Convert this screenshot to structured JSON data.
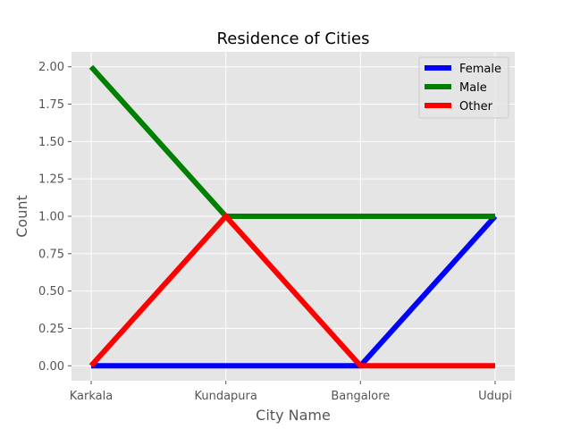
{
  "chart_data": {
    "type": "line",
    "title": "Residence of Cities",
    "xlabel": "City Name",
    "ylabel": "Count",
    "categories": [
      "Karkala",
      "Kundapura",
      "Bangalore",
      "Udupi"
    ],
    "ylim": [
      -0.1,
      2.1
    ],
    "yticks": [
      0.0,
      0.25,
      0.5,
      0.75,
      1.0,
      1.25,
      1.5,
      1.75,
      2.0
    ],
    "ytick_labels": [
      "0.00",
      "0.25",
      "0.50",
      "0.75",
      "1.00",
      "1.25",
      "1.50",
      "1.75",
      "2.00"
    ],
    "grid": true,
    "legend_position": "top-right",
    "series": [
      {
        "name": "Female",
        "color": "#0000ff",
        "values": [
          0,
          0,
          0,
          1
        ]
      },
      {
        "name": "Male",
        "color": "#008000",
        "values": [
          2,
          1,
          1,
          1
        ]
      },
      {
        "name": "Other",
        "color": "#ff0000",
        "values": [
          0,
          1,
          0,
          0
        ]
      }
    ]
  }
}
